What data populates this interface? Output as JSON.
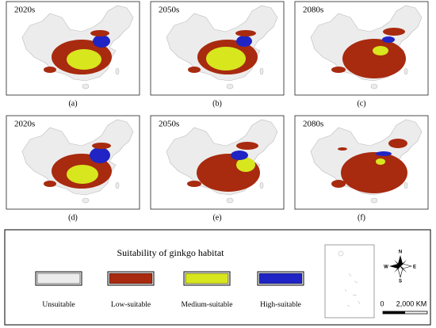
{
  "panels": [
    {
      "period": "2020s",
      "caption": "(a)"
    },
    {
      "period": "2050s",
      "caption": "(b)"
    },
    {
      "period": "2080s",
      "caption": "(c)"
    },
    {
      "period": "2020s",
      "caption": "(d)"
    },
    {
      "period": "2050s",
      "caption": "(e)"
    },
    {
      "period": "2080s",
      "caption": "(f)"
    }
  ],
  "legend": {
    "title": "Suitability of ginkgo habitat",
    "items": [
      {
        "name": "Unsuitable",
        "color": "#ececec"
      },
      {
        "name": "Low-suitable",
        "color": "#a82a0f"
      },
      {
        "name": "Medium-suitable",
        "color": "#d8e61e"
      },
      {
        "name": "High-suitable",
        "color": "#2024c4"
      }
    ]
  },
  "compass": {
    "n": "N",
    "e": "E",
    "s": "S",
    "w": "W"
  },
  "scale": {
    "start": "0",
    "end": "2,000 KM"
  }
}
